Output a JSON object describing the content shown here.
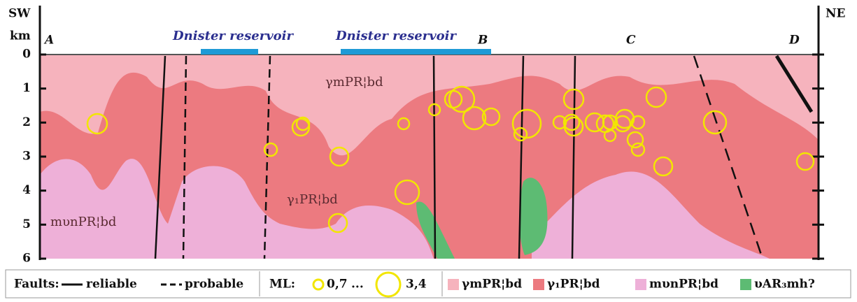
{
  "header": {
    "left": "SW",
    "right": "NE",
    "unit": "km"
  },
  "points": [
    "A",
    "B",
    "C",
    "D"
  ],
  "reservoirs": [
    "Dnister reservoir",
    "Dnister reservoir"
  ],
  "depth_ticks": [
    0,
    1,
    2,
    3,
    4,
    5,
    6
  ],
  "units_on_section": [
    "γmPR¦bd",
    "γ₁PR¦bd",
    "mυnPR¦bd"
  ],
  "legend": {
    "faults_title": "Faults:",
    "reliable": "reliable",
    "probable": "probable",
    "ml_title": "ML:",
    "ml_min": "0,7",
    "ml_dots": "...",
    "ml_max": "3,4",
    "units": [
      {
        "label": "γmPR¦bd",
        "color": "#f6b3bd"
      },
      {
        "label": "γ₁PR¦bd",
        "color": "#ec7a80"
      },
      {
        "label": "mυnPR¦bd",
        "color": "#eeb0d8"
      },
      {
        "label": "υAR₃mh?",
        "color": "#5dbb73"
      }
    ]
  }
}
